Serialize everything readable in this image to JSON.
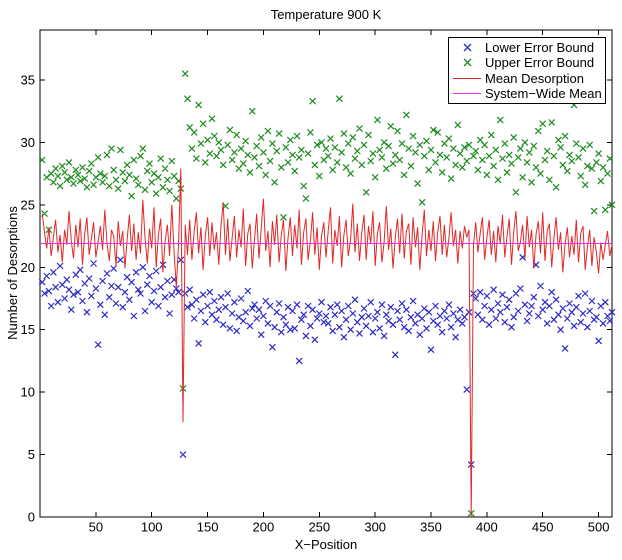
{
  "chart_data": {
    "type": "scatter",
    "title": "Temperature 900 K",
    "xlabel": "X−Position",
    "ylabel": "Number of Desorptions",
    "xlim": [
      0,
      512
    ],
    "ylim": [
      0,
      39
    ],
    "xticks": [
      50,
      100,
      150,
      200,
      250,
      300,
      350,
      400,
      450,
      500
    ],
    "yticks": [
      0,
      5,
      10,
      15,
      20,
      25,
      30,
      35
    ],
    "grid": false,
    "legend_position": "top-right",
    "x_start": 2,
    "x_step": 2,
    "series": [
      {
        "name": "Lower Error Bound",
        "type": "scatter",
        "marker": "x",
        "color": "#2a2ac8",
        "values": [
          18.8,
          17.9,
          19.3,
          18.1,
          16.9,
          19.6,
          18.4,
          17.2,
          20.1,
          18.6,
          17.5,
          19.0,
          18.2,
          16.6,
          17.8,
          19.4,
          18.0,
          19.8,
          17.3,
          18.7,
          16.4,
          19.1,
          17.7,
          20.3,
          18.3,
          13.8,
          17.0,
          18.9,
          16.2,
          19.5,
          17.6,
          18.5,
          19.9,
          17.1,
          18.4,
          20.6,
          16.8,
          18.0,
          19.2,
          17.4,
          18.8,
          16.1,
          19.6,
          18.2,
          17.9,
          20.0,
          16.5,
          18.6,
          19.3,
          17.2,
          18.1,
          19.7,
          16.9,
          18.4,
          20.2,
          17.6,
          18.9,
          16.3,
          17.8,
          19.0,
          18.3,
          18.0,
          20.6,
          5.0,
          17.9,
          16.8,
          18.2,
          17.0,
          15.9,
          17.4,
          13.9,
          16.5,
          17.8,
          15.6,
          16.9,
          18.0,
          16.2,
          17.3,
          15.8,
          16.6,
          17.6,
          15.4,
          16.8,
          17.9,
          15.1,
          16.3,
          17.2,
          14.9,
          16.0,
          17.5,
          15.7,
          16.4,
          18.1,
          15.3,
          16.7,
          17.0,
          15.9,
          16.6,
          14.6,
          16.1,
          17.3,
          15.5,
          16.9,
          13.6,
          15.2,
          16.4,
          17.1,
          14.8,
          16.0,
          15.4,
          16.8,
          15.0,
          16.5,
          15.1,
          17.0,
          12.5,
          15.8,
          16.2,
          14.5,
          16.9,
          15.3,
          16.6,
          14.2,
          15.9,
          16.3,
          17.2,
          15.6,
          16.1,
          15.5,
          16.8,
          14.9,
          16.2,
          17.0,
          15.2,
          16.5,
          14.4,
          15.8,
          16.9,
          15.0,
          16.3,
          17.4,
          15.6,
          14.7,
          16.0,
          16.7,
          15.3,
          16.1,
          17.2,
          14.8,
          15.9,
          16.4,
          15.1,
          17.0,
          14.5,
          16.2,
          15.7,
          16.8,
          15.4,
          13.0,
          16.5,
          15.8,
          17.1,
          15.2,
          16.6,
          14.9,
          16.0,
          17.3,
          15.5,
          16.2,
          14.6,
          15.9,
          16.7,
          15.1,
          16.4,
          13.4,
          15.7,
          16.9,
          15.4,
          16.1,
          14.8,
          16.5,
          15.9,
          17.0,
          15.2,
          16.3,
          14.4,
          15.8,
          16.6,
          15.5,
          16.0,
          10.2,
          16.4,
          4.2,
          17.9,
          17.5,
          16.2,
          18.0,
          15.8,
          16.9,
          17.7,
          15.4,
          16.6,
          18.2,
          15.9,
          17.1,
          16.4,
          17.8,
          15.6,
          16.8,
          17.4,
          15.2,
          16.0,
          17.9,
          16.5,
          18.3,
          20.8,
          17.0,
          15.7,
          16.3,
          16.9,
          17.6,
          20.2,
          16.1,
          18.5,
          16.6,
          17.2,
          15.5,
          16.9,
          18.0,
          15.8,
          17.4,
          16.2,
          15.0,
          16.7,
          13.5,
          15.9,
          17.1,
          16.4,
          15.3,
          16.8,
          17.7,
          15.6,
          16.3,
          17.9,
          15.2,
          16.5,
          17.3,
          15.8,
          16.0,
          14.1,
          16.9,
          15.5,
          17.2,
          16.1,
          15.7,
          16.4
        ]
      },
      {
        "name": "Upper Error Bound",
        "type": "scatter",
        "marker": "x",
        "color": "#1e8c1e",
        "values": [
          28.6,
          24.3,
          27.2,
          23.0,
          27.5,
          26.8,
          27.9,
          27.3,
          26.5,
          28.1,
          27.6,
          27.0,
          28.4,
          27.2,
          26.7,
          27.8,
          27.4,
          26.9,
          28.0,
          27.1,
          26.4,
          27.7,
          28.3,
          26.6,
          27.2,
          28.8,
          27.5,
          26.8,
          27.3,
          29.0,
          26.5,
          29.5,
          27.8,
          27.0,
          26.3,
          29.4,
          27.6,
          26.9,
          28.2,
          27.4,
          25.7,
          28.6,
          27.1,
          26.6,
          28.9,
          29.5,
          26.2,
          27.7,
          28.3,
          26.8,
          27.5,
          25.9,
          27.2,
          28.7,
          26.4,
          27.9,
          27.0,
          26.1,
          28.5,
          27.3,
          25.5,
          26.9,
          26.3,
          10.3,
          35.5,
          33.5,
          31.2,
          29.5,
          30.8,
          28.7,
          33.0,
          29.9,
          31.5,
          28.4,
          30.2,
          29.1,
          31.9,
          30.5,
          28.9,
          30.0,
          29.4,
          28.2,
          24.9,
          29.8,
          31.0,
          28.6,
          29.2,
          30.6,
          27.9,
          29.5,
          28.3,
          30.1,
          29.0,
          27.6,
          32.5,
          28.8,
          29.7,
          28.1,
          30.4,
          29.2,
          27.4,
          30.9,
          28.5,
          29.9,
          26.8,
          29.3,
          30.7,
          28.0,
          24.0,
          29.6,
          28.4,
          30.2,
          29.0,
          27.7,
          30.5,
          28.8,
          29.4,
          26.5,
          25.5,
          29.1,
          30.8,
          33.3,
          28.2,
          29.8,
          27.3,
          30.0,
          28.6,
          29.5,
          28.9,
          30.3,
          27.8,
          29.6,
          28.4,
          33.5,
          29.2,
          30.7,
          28.0,
          29.9,
          27.5,
          30.4,
          28.7,
          29.3,
          31.1,
          28.2,
          29.8,
          26.0,
          30.6,
          28.5,
          29.1,
          27.2,
          31.8,
          29.4,
          28.8,
          30.0,
          27.9,
          29.7,
          31.3,
          28.3,
          29.0,
          30.9,
          28.6,
          29.9,
          27.4,
          32.2,
          29.5,
          28.1,
          30.5,
          29.2,
          26.7,
          29.8,
          25.2,
          28.9,
          30.1,
          27.8,
          29.4,
          31.0,
          28.4,
          30.8,
          29.0,
          27.6,
          29.9,
          28.8,
          30.3,
          27.1,
          29.5,
          28.2,
          31.4,
          29.1,
          28.0,
          29.6,
          28.5,
          29.8,
          0.3,
          28.9,
          29.3,
          27.8,
          30.2,
          28.6,
          29.8,
          27.4,
          28.9,
          30.6,
          28.1,
          29.4,
          27.0,
          31.8,
          28.7,
          29.9,
          27.6,
          29.0,
          28.3,
          30.4,
          26.0,
          28.8,
          29.5,
          27.2,
          30.0,
          28.4,
          29.2,
          26.8,
          29.7,
          28.0,
          30.9,
          27.5,
          31.5,
          28.6,
          29.3,
          27.0,
          31.6,
          28.9,
          26.4,
          30.2,
          29.6,
          28.2,
          30.5,
          27.7,
          29.0,
          28.5,
          33.0,
          29.9,
          28.8,
          27.3,
          29.5,
          26.6,
          28.1,
          29.8,
          27.9,
          24.5,
          28.4,
          29.1,
          26.9,
          28.0,
          24.6,
          27.5,
          28.7,
          25.0
        ]
      },
      {
        "name": "Mean Desorption",
        "type": "line",
        "color": "#e02828",
        "values": [
          24.3,
          22.8,
          21.5,
          23.2,
          20.9,
          22.4,
          23.8,
          21.2,
          22.6,
          20.4,
          23.0,
          21.8,
          24.5,
          22.1,
          20.7,
          23.4,
          21.6,
          23.9,
          20.2,
          22.7,
          24.0,
          21.0,
          22.3,
          23.6,
          20.8,
          22.0,
          23.3,
          21.4,
          24.6,
          21.9,
          20.5,
          23.0,
          22.5,
          20.1,
          23.7,
          21.7,
          22.9,
          19.9,
          22.2,
          24.2,
          21.3,
          23.5,
          20.6,
          22.8,
          21.1,
          25.4,
          22.4,
          20.3,
          23.1,
          21.5,
          24.8,
          20.0,
          22.6,
          23.9,
          19.6,
          22.1,
          23.4,
          20.9,
          25.0,
          21.2,
          18.4,
          21.8,
          27.9,
          7.6,
          23.4,
          21.0,
          23.8,
          20.6,
          22.9,
          24.4,
          21.1,
          23.2,
          19.8,
          22.5,
          24.0,
          20.9,
          23.6,
          21.4,
          22.8,
          20.2,
          23.3,
          25.2,
          21.0,
          23.9,
          20.5,
          22.4,
          24.1,
          20.8,
          23.0,
          21.6,
          24.7,
          20.1,
          22.7,
          23.5,
          19.9,
          22.2,
          24.3,
          20.7,
          23.1,
          25.5,
          21.3,
          22.9,
          20.0,
          23.7,
          21.8,
          24.2,
          20.4,
          22.6,
          23.8,
          19.7,
          22.3,
          24.0,
          20.9,
          23.4,
          21.5,
          24.6,
          20.2,
          22.8,
          23.9,
          20.6,
          22.1,
          24.4,
          21.0,
          23.2,
          19.8,
          22.5,
          23.6,
          20.8,
          22.9,
          24.8,
          20.3,
          23.0,
          21.7,
          24.1,
          20.0,
          22.6,
          23.8,
          20.9,
          22.2,
          25.1,
          21.2,
          23.5,
          20.5,
          22.8,
          24.2,
          20.6,
          23.3,
          21.9,
          24.5,
          20.1,
          22.7,
          23.6,
          20.4,
          22.0,
          24.9,
          21.4,
          23.1,
          19.9,
          22.4,
          23.9,
          21.1,
          24.3,
          20.7,
          22.9,
          23.5,
          20.2,
          24.0,
          21.6,
          23.2,
          19.8,
          22.6,
          24.6,
          20.9,
          23.0,
          21.3,
          23.7,
          20.5,
          22.8,
          24.1,
          21.0,
          23.4,
          20.8,
          22.3,
          24.4,
          21.7,
          23.0,
          20.3,
          22.9,
          21.5,
          23.3,
          22.4,
          23.0,
          0.0,
          21.8,
          23.6,
          21.2,
          22.7,
          24.0,
          20.6,
          22.4,
          23.8,
          21.0,
          22.9,
          20.4,
          23.3,
          21.9,
          24.2,
          20.8,
          22.5,
          23.9,
          20.2,
          22.8,
          24.5,
          21.3,
          22.0,
          23.4,
          20.7,
          24.1,
          21.6,
          23.0,
          19.9,
          22.6,
          23.7,
          21.1,
          24.4,
          20.5,
          22.9,
          23.5,
          20.0,
          22.3,
          24.0,
          21.4,
          22.8,
          19.6,
          21.9,
          23.2,
          20.8,
          22.5,
          21.0,
          23.8,
          20.4,
          22.7,
          23.3,
          19.8,
          21.6,
          23.0,
          20.1,
          22.4,
          21.2,
          19.5,
          22.0,
          20.6,
          21.8,
          22.9,
          20.9,
          21.8
        ]
      },
      {
        "name": "System−Wide Mean",
        "type": "hline",
        "color": "#e632e6",
        "value": 21.9
      }
    ]
  }
}
